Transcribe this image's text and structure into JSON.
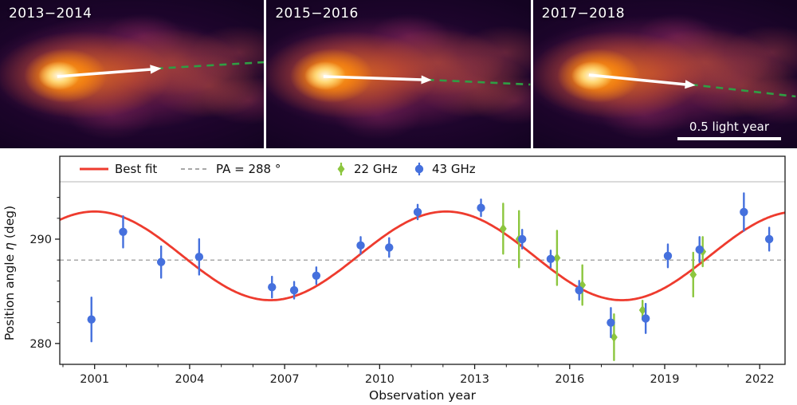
{
  "panels": [
    {
      "label": "2013−2014"
    },
    {
      "label": "2015−2016"
    },
    {
      "label": "2017−2018",
      "scalebar_label": "0.5 light year"
    }
  ],
  "chart_data": {
    "type": "scatter",
    "title": "",
    "xlabel": "Observation year",
    "ylabel": "Position angle η (deg)",
    "xlim": [
      1999.9,
      2022.8
    ],
    "ylim": [
      278,
      295.5
    ],
    "xticks": [
      2001,
      2004,
      2007,
      2010,
      2013,
      2016,
      2019,
      2022
    ],
    "yticks": [
      280,
      290
    ],
    "grid": false,
    "legend_position": "top strip inside axes",
    "reference_line": {
      "label": "PA = 288 °",
      "y": 288,
      "color": "#8c8c8c",
      "style": "dashed"
    },
    "best_fit": {
      "label": "Best fit",
      "color": "#ee3b2e",
      "model": "sinusoid",
      "mean_deg": 288.4,
      "amplitude_deg": 4.25,
      "period_years": 11.1,
      "peak_year": 2012.1
    },
    "series": [
      {
        "name": "22 GHz",
        "marker": "diamond",
        "color": "#8cc63e",
        "points_format": [
          "year",
          "position_angle_deg",
          "error_deg"
        ],
        "points": [
          [
            2013.9,
            291.0,
            2.4
          ],
          [
            2014.4,
            290.0,
            2.7
          ],
          [
            2015.6,
            288.2,
            2.6
          ],
          [
            2016.4,
            285.6,
            1.9
          ],
          [
            2017.4,
            280.6,
            2.2
          ],
          [
            2018.3,
            283.2,
            0.9
          ],
          [
            2019.9,
            286.6,
            2.1
          ],
          [
            2020.2,
            288.8,
            1.4
          ]
        ]
      },
      {
        "name": "43 GHz",
        "marker": "circle",
        "color": "#4570dd",
        "points_format": [
          "year",
          "position_angle_deg",
          "error_deg"
        ],
        "points": [
          [
            2000.9,
            282.3,
            2.1
          ],
          [
            2001.9,
            290.7,
            1.5
          ],
          [
            2003.1,
            287.8,
            1.5
          ],
          [
            2004.3,
            288.3,
            1.7
          ],
          [
            2006.6,
            285.4,
            1.0
          ],
          [
            2007.3,
            285.1,
            0.8
          ],
          [
            2008.0,
            286.5,
            0.8
          ],
          [
            2009.4,
            289.4,
            0.8
          ],
          [
            2010.3,
            289.2,
            0.9
          ],
          [
            2011.2,
            292.6,
            0.7
          ],
          [
            2013.2,
            293.0,
            0.8
          ],
          [
            2014.5,
            290.0,
            0.9
          ],
          [
            2015.4,
            288.1,
            0.8
          ],
          [
            2016.3,
            285.1,
            0.9
          ],
          [
            2017.3,
            282.0,
            1.4
          ],
          [
            2018.4,
            282.4,
            1.4
          ],
          [
            2019.1,
            288.4,
            1.1
          ],
          [
            2020.1,
            289.0,
            1.2
          ],
          [
            2021.5,
            292.6,
            1.8
          ],
          [
            2022.3,
            290.0,
            1.1
          ]
        ]
      }
    ]
  }
}
